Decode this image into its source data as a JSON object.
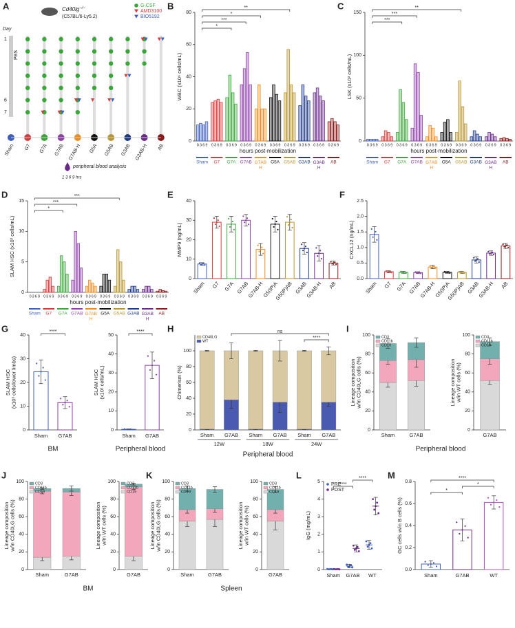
{
  "diagram": {
    "panel": "A",
    "title": "Cd40lg",
    "title_sup": "−/−",
    "subtitle": "(C57BL/6-Ly5.2)",
    "legend": [
      "G-CSF",
      "AMD3100",
      "BIO5192"
    ],
    "day_label": "Day",
    "days": [
      "1",
      "6",
      "7"
    ],
    "treatment": "PBS",
    "groups": [
      "Sham",
      "G7",
      "G7A",
      "G7AB",
      "G7AB-H",
      "G5A",
      "G5AB",
      "G3AB",
      "G3AB-H",
      "AB"
    ],
    "note": "peripheral blood analysis",
    "hours": "1  3  6  9 hrs"
  },
  "chart_data": [
    {
      "panel": "B",
      "type": "grouped_bar",
      "ylabel": "WBC (x10⁶ cells/mL)",
      "xlabel": "hours post-mobilization",
      "categories": [
        "Sham",
        "G7",
        "G7A",
        "G7AB",
        "G7AB\nH",
        "G5A",
        "G5AB",
        "G3AB",
        "G3AB\nH",
        "AB"
      ],
      "subcategories": [
        "0",
        "3",
        "6",
        "9"
      ],
      "colors": [
        "#3f5fbf",
        "#d63a3a",
        "#3aa63a",
        "#8e3fa8",
        "#f08c1e",
        "#111111",
        "#b8962e",
        "#1e3a8a",
        "#6a2a8a",
        "#8b1a1a"
      ],
      "values": [
        [
          10,
          11,
          10,
          12
        ],
        [
          24,
          25,
          26,
          24
        ],
        [
          27,
          41,
          30,
          23
        ],
        [
          35,
          45,
          55,
          35
        ],
        [
          20,
          35,
          20,
          20
        ],
        [
          27,
          35,
          29,
          25
        ],
        [
          30,
          57,
          35,
          30
        ],
        [
          22,
          35,
          28,
          25
        ],
        [
          30,
          33,
          28,
          25
        ],
        [
          12,
          14,
          12,
          10
        ]
      ],
      "ylim": [
        0,
        80
      ],
      "yticks": [
        0,
        20,
        40,
        60,
        80
      ],
      "annotations": [
        {
          "from": 0,
          "to": 2,
          "label": "*"
        },
        {
          "from": 0,
          "to": 3,
          "label": "***"
        },
        {
          "from": 0,
          "to": 4,
          "label": "*"
        },
        {
          "from": 0,
          "to": 6,
          "label": "**"
        }
      ]
    },
    {
      "panel": "C",
      "type": "grouped_bar",
      "ylabel": "LSK (x10³ cells/mL)",
      "xlabel": "hours post-mobilization",
      "categories": [
        "Sham",
        "G7",
        "G7A",
        "G7AB",
        "G7AB\nH",
        "G5A",
        "G5AB",
        "G3AB",
        "G3AB\nH",
        "AB"
      ],
      "subcategories": [
        "0",
        "3",
        "6",
        "9"
      ],
      "colors": [
        "#3f5fbf",
        "#d63a3a",
        "#3aa63a",
        "#8e3fa8",
        "#f08c1e",
        "#111111",
        "#b8962e",
        "#1e3a8a",
        "#6a2a8a",
        "#8b1a1a"
      ],
      "values": [
        [
          2,
          2,
          2,
          2
        ],
        [
          5,
          12,
          10,
          5
        ],
        [
          10,
          60,
          45,
          25
        ],
        [
          15,
          90,
          80,
          30
        ],
        [
          5,
          18,
          15,
          5
        ],
        [
          10,
          22,
          25,
          10
        ],
        [
          10,
          70,
          40,
          20
        ],
        [
          5,
          12,
          8,
          5
        ],
        [
          5,
          10,
          8,
          5
        ],
        [
          3,
          4,
          3,
          2
        ]
      ],
      "ylim": [
        0,
        150
      ],
      "yticks": [
        0,
        50,
        100,
        150
      ],
      "annotations": [
        {
          "from": 0,
          "to": 2,
          "label": "***"
        },
        {
          "from": 0,
          "to": 3,
          "label": "***"
        },
        {
          "from": 0,
          "to": 6,
          "label": "**"
        }
      ]
    },
    {
      "panel": "D",
      "type": "grouped_bar",
      "ylabel": "SLAM HSC (x10² cells/mL)",
      "xlabel": "hours post-mobilization",
      "categories": [
        "Sham",
        "G7",
        "G7A",
        "G7AB",
        "G7AB\nH",
        "G5A",
        "G5AB",
        "G3AB",
        "G3AB\nH",
        "AB"
      ],
      "subcategories": [
        "0",
        "3",
        "6",
        "9"
      ],
      "colors": [
        "#3f5fbf",
        "#d63a3a",
        "#3aa63a",
        "#8e3fa8",
        "#f08c1e",
        "#111111",
        "#b8962e",
        "#1e3a8a",
        "#6a2a8a",
        "#8b1a1a"
      ],
      "values": [
        [
          0,
          0,
          0,
          0
        ],
        [
          0.5,
          2,
          2.5,
          1
        ],
        [
          1,
          6,
          5,
          3
        ],
        [
          2,
          10,
          8,
          4
        ],
        [
          1,
          2,
          1.5,
          1
        ],
        [
          1,
          3,
          3,
          2
        ],
        [
          1,
          7,
          5,
          2
        ],
        [
          0.5,
          1,
          1,
          0.5
        ],
        [
          0.5,
          1,
          1,
          0.5
        ],
        [
          0.2,
          0.5,
          0.3,
          0.2
        ]
      ],
      "ylim": [
        0,
        15
      ],
      "yticks": [
        0,
        5,
        10,
        15
      ],
      "annotations": [
        {
          "from": 0,
          "to": 2,
          "label": "*"
        },
        {
          "from": 0,
          "to": 3,
          "label": "***"
        },
        {
          "from": 0,
          "to": 6,
          "label": "***"
        }
      ]
    },
    {
      "panel": "E",
      "type": "bar",
      "ylabel": "MMP9 (ng/mL)",
      "categories": [
        "Sham",
        "G7",
        "G7A",
        "G7AB",
        "G7AB-H",
        "G5(IP)A",
        "G5(IP)AB",
        "G3AB",
        "G3AB-H",
        "AB"
      ],
      "colors": [
        "#3f5fbf",
        "#d63a3a",
        "#3aa63a",
        "#8e3fa8",
        "#f08c1e",
        "#111111",
        "#b8962e",
        "#1e3a8a",
        "#6a2a8a",
        "#8b1a1a"
      ],
      "values": [
        7.5,
        29,
        28,
        30,
        15,
        28,
        29,
        15.5,
        13,
        8
      ],
      "errors": [
        0.7,
        3,
        4,
        3,
        3,
        4,
        4,
        3,
        4,
        1
      ],
      "ylim": [
        0,
        40
      ],
      "yticks": [
        0,
        10,
        20,
        30,
        40
      ]
    },
    {
      "panel": "F",
      "type": "bar",
      "ylabel": "CXCL12 (ng/mL)",
      "categories": [
        "Sham",
        "G7",
        "G7A",
        "G7AB",
        "G7AB-H",
        "G5(IP)A",
        "G5(IP)AB",
        "G3AB",
        "G3AB-H",
        "AB"
      ],
      "colors": [
        "#3f5fbf",
        "#d63a3a",
        "#3aa63a",
        "#8e3fa8",
        "#f08c1e",
        "#111111",
        "#b8962e",
        "#1e3a8a",
        "#6a2a8a",
        "#8b1a1a"
      ],
      "values": [
        1.42,
        0.22,
        0.2,
        0.19,
        0.37,
        0.2,
        0.2,
        0.6,
        0.82,
        1.05
      ],
      "errors": [
        0.25,
        0.03,
        0.03,
        0.03,
        0.05,
        0.03,
        0.03,
        0.1,
        0.07,
        0.08
      ],
      "ylim": [
        0,
        2.5
      ],
      "yticks": [
        {
          "value": 0,
          "label": "0.0"
        },
        0.5,
        {
          "value": 1,
          "label": "1.0"
        },
        1.5,
        {
          "value": 2,
          "label": "2.0"
        },
        2.5
      ]
    },
    {
      "panel": "G",
      "type": "bar",
      "ylabel": "SLAM HSC\n(x10³ cells/lower limbs)",
      "xlabel": "BM",
      "categories": [
        "Sham",
        "G7AB"
      ],
      "colors": [
        "#3f5fbf",
        "#8e3fa8"
      ],
      "values": [
        24.5,
        11.5
      ],
      "errors": [
        5,
        2.5
      ],
      "ylim": [
        0,
        40
      ],
      "yticks": [
        0,
        10,
        20,
        30,
        40
      ],
      "annotations": [
        {
          "from": 0,
          "to": 1,
          "label": "****"
        }
      ]
    },
    {
      "type": "bar",
      "ylabel": "SLAM HSC\n(x10² cells/mL)",
      "xlabel": "Peripheral blood",
      "categories": [
        "Sham",
        "G7AB"
      ],
      "colors": [
        "#3f5fbf",
        "#8e3fa8"
      ],
      "values": [
        0.3,
        34
      ],
      "errors": [
        0.2,
        7
      ],
      "ylim": [
        0,
        50
      ],
      "yticks": [
        0,
        10,
        20,
        30,
        40,
        50
      ],
      "annotations": [
        {
          "from": 0,
          "to": 1,
          "label": "****"
        }
      ]
    },
    {
      "panel": "H",
      "type": "stacked_bar",
      "ylabel": "Chimerism (%)",
      "xlabel": "Peripheral blood",
      "categories": [
        "Sham",
        "G7AB",
        "Sham",
        "G7AB",
        "Sham",
        "G7AB"
      ],
      "groups": [
        "12W",
        "18W",
        "24W"
      ],
      "series": [
        {
          "name": "WT",
          "color": "#4a5ab0",
          "values": [
            1,
            38,
            1,
            35,
            1,
            35
          ],
          "errors": [
            0.5,
            11,
            0.5,
            13,
            0.5,
            5
          ]
        },
        {
          "name": "CD40LG",
          "color": "#d8c9a3",
          "values": [
            99,
            62,
            99,
            65,
            99,
            65
          ],
          "errors": [
            0.5,
            10,
            0.5,
            13,
            0.5,
            5
          ]
        }
      ],
      "ylim": [
        0,
        120
      ],
      "yticks": [
        0,
        20,
        40,
        60,
        80,
        100
      ],
      "annotations": [
        {
          "from": 4,
          "to": 5,
          "label": "****"
        },
        {
          "from": 1,
          "to": 5,
          "label": "ns"
        }
      ]
    },
    {
      "panel": "I",
      "type": "stacked_bar",
      "ylabel": "Lineage composition\nw/in CD40LG cells (%)",
      "xlabel": "Peripheral blood",
      "categories": [
        "Sham",
        "G7AB"
      ],
      "series": [
        {
          "name": "CD19",
          "color": "#d9d9d9",
          "values": [
            50,
            52
          ],
          "errors": [
            5,
            6
          ]
        },
        {
          "name": "CD11b",
          "color": "#f2a7bd",
          "values": [
            23,
            22
          ],
          "errors": [
            4,
            8
          ]
        },
        {
          "name": "CD3",
          "color": "#72b0ad",
          "values": [
            18,
            18
          ],
          "errors": [
            5,
            5
          ]
        }
      ],
      "ylim": [
        0,
        100
      ],
      "yticks": [
        0,
        20,
        40,
        60,
        80,
        100
      ]
    },
    {
      "type": "stacked_bar",
      "ylabel": "Lineage composition\nw/in WT cells (%)",
      "categories": [
        "G7AB"
      ],
      "series": [
        {
          "name": "CD19",
          "color": "#d9d9d9",
          "values": [
            52
          ],
          "errors": [
            4
          ]
        },
        {
          "name": "CD11b",
          "color": "#f2a7bd",
          "values": [
            23
          ],
          "errors": [
            6
          ]
        },
        {
          "name": "CD3",
          "color": "#72b0ad",
          "values": [
            18
          ],
          "errors": [
            4
          ]
        }
      ],
      "ylim": [
        0,
        100
      ],
      "yticks": [
        0,
        20,
        40,
        60,
        80,
        100
      ]
    },
    {
      "panel": "J",
      "type": "stacked_bar",
      "ylabel": "Lineage composition\nw/in CD40LG cells (%)",
      "xlabel": "BM",
      "categories": [
        "Sham",
        "G7AB"
      ],
      "series": [
        {
          "name": "CD19",
          "color": "#d9d9d9",
          "values": [
            14,
            15
          ],
          "errors": [
            4,
            4
          ]
        },
        {
          "name": "CD11b",
          "color": "#f2a7bd",
          "values": [
            75,
            73
          ],
          "errors": [
            3,
            4
          ]
        },
        {
          "name": "CD3",
          "color": "#72b0ad",
          "values": [
            3,
            4
          ],
          "errors": [
            1,
            3
          ]
        }
      ],
      "ylim": [
        0,
        100
      ],
      "yticks": [
        0,
        20,
        40,
        60,
        80,
        100
      ]
    },
    {
      "type": "stacked_bar",
      "ylabel": "Lineage composition\nw/in WT cells (%)",
      "categories": [
        "G7AB"
      ],
      "series": [
        {
          "name": "CD19",
          "color": "#d9d9d9",
          "values": [
            15
          ],
          "errors": [
            5
          ]
        },
        {
          "name": "CD11b",
          "color": "#f2a7bd",
          "values": [
            79
          ],
          "errors": [
            3
          ]
        },
        {
          "name": "CD3",
          "color": "#72b0ad",
          "values": [
            3
          ],
          "errors": [
            1
          ]
        }
      ],
      "ylim": [
        0,
        100
      ],
      "yticks": [
        0,
        20,
        40,
        60,
        80,
        100
      ]
    },
    {
      "panel": "K",
      "type": "stacked_bar",
      "ylabel": "Lineage composition\nw/in CD40LG cells (%)",
      "xlabel": "Spleen",
      "categories": [
        "Sham",
        "G7AB"
      ],
      "series": [
        {
          "name": "CD19",
          "color": "#d9d9d9",
          "values": [
            55,
            57
          ],
          "errors": [
            6,
            8
          ]
        },
        {
          "name": "CD11b",
          "color": "#f2a7bd",
          "values": [
            13,
            12
          ],
          "errors": [
            4,
            4
          ]
        },
        {
          "name": "CD3",
          "color": "#72b0ad",
          "values": [
            24,
            22
          ],
          "errors": [
            3,
            3
          ]
        }
      ],
      "ylim": [
        0,
        100
      ],
      "yticks": [
        0,
        20,
        40,
        60,
        80,
        100
      ]
    },
    {
      "type": "stacked_bar",
      "ylabel": "Lineage composition\nw/in WT cells (%)",
      "categories": [
        "G7AB"
      ],
      "series": [
        {
          "name": "CD19",
          "color": "#d9d9d9",
          "values": [
            55
          ],
          "errors": [
            10
          ]
        },
        {
          "name": "CD11b",
          "color": "#f2a7bd",
          "values": [
            13
          ],
          "errors": [
            4
          ]
        },
        {
          "name": "CD3",
          "color": "#72b0ad",
          "values": [
            23
          ],
          "errors": [
            3
          ]
        }
      ],
      "ylim": [
        0,
        100
      ],
      "yticks": [
        0,
        20,
        40,
        60,
        80,
        100
      ]
    },
    {
      "panel": "L",
      "type": "dot",
      "ylabel": "IgG (mg/mL)",
      "categories": [
        "Sham",
        "G7AB",
        "WT"
      ],
      "series": [
        {
          "name": "PRE",
          "color": "#3f5fbf",
          "values": [
            0.02,
            0.2,
            1.4
          ],
          "errors": [
            0.01,
            0.1,
            0.25
          ]
        },
        {
          "name": "POST",
          "color": "#6a2a8a",
          "values": [
            0.02,
            1.2,
            3.6
          ],
          "errors": [
            0.01,
            0.2,
            0.5
          ]
        }
      ],
      "ylim": [
        0,
        5
      ],
      "yticks": [
        0,
        1,
        2,
        3,
        4,
        5
      ],
      "annotations": [
        {
          "from": 0,
          "to": 1,
          "label": "****"
        },
        {
          "from": 1,
          "to": 2,
          "label": "****"
        }
      ]
    },
    {
      "panel": "M",
      "type": "bar",
      "ylabel": "GC cells w/in B cells (%)",
      "categories": [
        "Sham",
        "G7AB",
        "WT"
      ],
      "colors": [
        "#3f5fbf",
        "#6a2a8a",
        "#b04fc4"
      ],
      "values": [
        0.05,
        0.36,
        0.61
      ],
      "errors": [
        0.03,
        0.1,
        0.06
      ],
      "ylim": [
        0,
        0.8
      ],
      "yticks": [
        {
          "value": 0,
          "label": "0.0"
        },
        0.2,
        0.4,
        0.6,
        0.8
      ],
      "annotations": [
        {
          "from": 0,
          "to": 1,
          "label": "*"
        },
        {
          "from": 1,
          "to": 2,
          "label": "*"
        },
        {
          "from": 0,
          "to": 2,
          "label": "****"
        }
      ]
    }
  ]
}
